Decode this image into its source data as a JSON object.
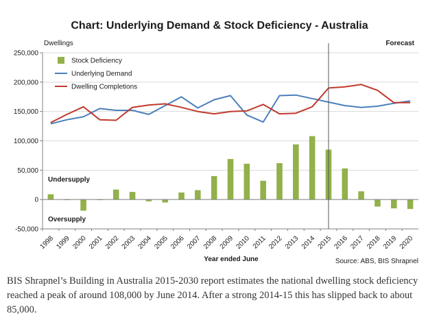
{
  "chart_data": {
    "type": "bar+line",
    "title": "Chart: Underlying Demand & Stock Deficiency - Australia",
    "ylabel": "Dwellings",
    "xlabel": "Year ended June",
    "ylim": [
      -50000,
      250000
    ],
    "yticks": [
      -50000,
      0,
      50000,
      100000,
      150000,
      200000,
      250000
    ],
    "ytick_labels": [
      "-50,000",
      "0",
      "50,000",
      "100,000",
      "150,000",
      "200,000",
      "250,000"
    ],
    "grid": true,
    "legend_position": "top-left",
    "categories": [
      "1998",
      "1999",
      "2000",
      "2001",
      "2002",
      "2003",
      "2004",
      "2005",
      "2006",
      "2007",
      "2008",
      "2009",
      "2010",
      "2011",
      "2012",
      "2013",
      "2014",
      "2015",
      "2016",
      "2017",
      "2018",
      "2019",
      "2020"
    ],
    "forecast_start": "2015",
    "series": [
      {
        "name": "Stock Deficiency",
        "kind": "bar",
        "color": "#92b14a",
        "values": [
          9000,
          -1000,
          -19000,
          -1000,
          17000,
          13000,
          -3000,
          -5000,
          12000,
          16000,
          40000,
          69000,
          61000,
          32000,
          62000,
          94000,
          108000,
          85000,
          53000,
          14000,
          -12000,
          -15000,
          -16000
        ]
      },
      {
        "name": "Underlying Demand",
        "kind": "line",
        "color": "#4a7ebb",
        "values": [
          129000,
          136000,
          141000,
          155000,
          152000,
          152000,
          145000,
          160000,
          175000,
          156000,
          170000,
          177000,
          144000,
          132000,
          177000,
          178000,
          172000,
          166000,
          160000,
          157000,
          159000,
          164000,
          168000
        ]
      },
      {
        "name": "Dwelling Completions",
        "kind": "line",
        "color": "#c0392b",
        "values": [
          131000,
          145000,
          158000,
          136000,
          135000,
          157000,
          161000,
          163000,
          157000,
          150000,
          146000,
          150000,
          151000,
          162000,
          146000,
          147000,
          158000,
          190000,
          192000,
          196000,
          186000,
          165000,
          165000
        ]
      }
    ],
    "annotations": {
      "forecast": "Forecast",
      "undersupply": "Undersupply",
      "oversupply": "Oversupply",
      "source": "Source: ABS, BIS Shrapnel"
    }
  },
  "caption": "BIS Shrapnel’s Building in Australia 2015-2030 report estimates the national dwelling stock deficiency reached a peak of around 108,000 by June 2014. After a strong 2014-15 this has slipped back to about 85,000."
}
